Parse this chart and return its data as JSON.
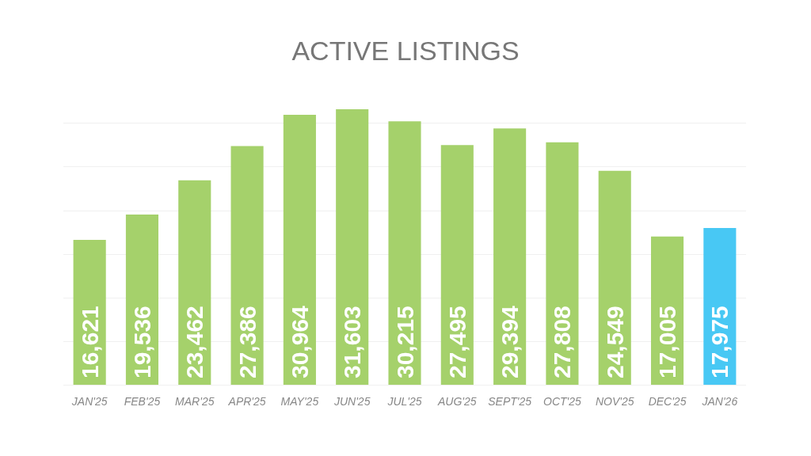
{
  "chart_data": {
    "type": "bar",
    "title": "ACTIVE LISTINGS",
    "categories": [
      "JAN'25",
      "FEB'25",
      "MAR'25",
      "APR'25",
      "MAY'25",
      "JUN'25",
      "JUL'25",
      "AUG'25",
      "SEPT'25",
      "OCT'25",
      "NOV'25",
      "DEC'25",
      "JAN'26"
    ],
    "values": [
      16621,
      19536,
      23462,
      27386,
      30964,
      31603,
      30215,
      27495,
      29394,
      27808,
      24549,
      17005,
      17975
    ],
    "value_labels": [
      "16,621",
      "19,536",
      "23,462",
      "27,386",
      "30,964",
      "31,603",
      "30,215",
      "27,495",
      "29,394",
      "27,808",
      "24,549",
      "17,005",
      "17,975"
    ],
    "colors": [
      "#a5d16b",
      "#a5d16b",
      "#a5d16b",
      "#a5d16b",
      "#a5d16b",
      "#a5d16b",
      "#a5d16b",
      "#a5d16b",
      "#a5d16b",
      "#a5d16b",
      "#a5d16b",
      "#a5d16b",
      "#48c8f4"
    ],
    "yticks": [
      {
        "value": 0,
        "label": null
      },
      {
        "value": 5000,
        "label": null
      },
      {
        "value": 10000,
        "label": null
      },
      {
        "value": 15000,
        "label": null
      },
      {
        "value": 20000,
        "label": null
      },
      {
        "value": 25000,
        "label": null
      },
      {
        "value": 30000,
        "label": null
      }
    ],
    "grid": "y",
    "tick_labels": "x"
  }
}
